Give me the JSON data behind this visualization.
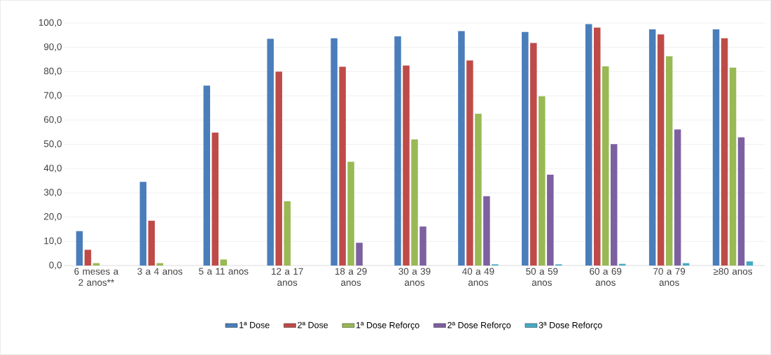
{
  "chart_data": {
    "type": "bar",
    "categories": [
      "6 meses a 2 anos**",
      "3 a 4 anos",
      "5 a 11 anos",
      "12 a 17 anos",
      "18 a 29 anos",
      "30 a 39 anos",
      "40 a 49 anos",
      "50 a 59 anos",
      "60 a 69 anos",
      "70 a 79 anos",
      "≥80 anos"
    ],
    "series": [
      {
        "name": "1ª Dose",
        "color": "#4a7ebb",
        "values": [
          14.2,
          34.5,
          74.2,
          93.5,
          93.7,
          94.5,
          96.7,
          96.3,
          99.6,
          97.4,
          97.4
        ]
      },
      {
        "name": "2ª Dose",
        "color": "#be4b48",
        "values": [
          6.5,
          18.5,
          54.8,
          80.0,
          82.0,
          82.5,
          84.6,
          91.8,
          98.1,
          95.3,
          93.7
        ]
      },
      {
        "name": "1ª Dose Reforço",
        "color": "#98b954",
        "values": [
          1.0,
          1.0,
          2.5,
          26.5,
          42.8,
          52.0,
          62.6,
          69.8,
          82.1,
          86.3,
          81.6
        ]
      },
      {
        "name": "2ª Dose Reforço",
        "color": "#7d60a0",
        "values": [
          0,
          0,
          0,
          0,
          9.4,
          16.1,
          28.6,
          37.5,
          50.1,
          56.1,
          52.9
        ]
      },
      {
        "name": "3ª Dose Reforço",
        "color": "#46aac5",
        "values": [
          0,
          0,
          0,
          0,
          0,
          0,
          0.5,
          0.5,
          0.7,
          1.0,
          1.7
        ]
      }
    ],
    "ylim": [
      0,
      100
    ],
    "yticks": [
      {
        "value": 0,
        "label": "0,0"
      },
      {
        "value": 10,
        "label": "10,0"
      },
      {
        "value": 20,
        "label": "20,0"
      },
      {
        "value": 30,
        "label": "30,0"
      },
      {
        "value": 40,
        "label": "40,0"
      },
      {
        "value": 50,
        "label": "50,0"
      },
      {
        "value": 60,
        "label": "60,0"
      },
      {
        "value": 70,
        "label": "70,0"
      },
      {
        "value": 80,
        "label": "80,0"
      },
      {
        "value": 90,
        "label": "90,0"
      },
      {
        "value": 100,
        "label": "100,0"
      }
    ],
    "grid": "y",
    "legend": "bottom"
  }
}
